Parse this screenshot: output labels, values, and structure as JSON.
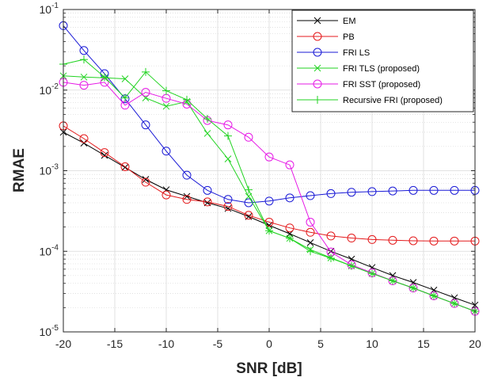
{
  "chart_data": {
    "type": "line",
    "xlabel": "SNR [dB]",
    "ylabel": "RMAE",
    "xlim": [
      -20,
      20
    ],
    "ylim": [
      1e-05,
      0.1
    ],
    "yscale": "log",
    "grid": true,
    "minor_grid": true,
    "legend_position": "top-right",
    "x_ticks": [
      -20,
      -15,
      -10,
      -5,
      0,
      5,
      10,
      15,
      20
    ],
    "y_ticks": [
      {
        "value": 1e-05,
        "base": "10",
        "exp": "-5"
      },
      {
        "value": 0.0001,
        "base": "10",
        "exp": "-4"
      },
      {
        "value": 0.001,
        "base": "10",
        "exp": "-3"
      },
      {
        "value": 0.01,
        "base": "10",
        "exp": "-2"
      },
      {
        "value": 0.1,
        "base": "10",
        "exp": "-1"
      }
    ],
    "x": [
      -20,
      -18,
      -16,
      -14,
      -12,
      -10,
      -8,
      -6,
      -4,
      -2,
      0,
      2,
      4,
      6,
      8,
      10,
      12,
      14,
      16,
      18,
      20
    ],
    "series": [
      {
        "name": "EM",
        "color": "#000000",
        "marker": "x",
        "values": [
          0.003,
          0.0022,
          0.00155,
          0.0011,
          0.00078,
          0.00058,
          0.00048,
          0.0004,
          0.00034,
          0.00027,
          0.00021,
          0.000165,
          0.000128,
          0.0001,
          8e-05,
          6.3e-05,
          5e-05,
          4.1e-05,
          3.3e-05,
          2.65e-05,
          2.15e-05
        ]
      },
      {
        "name": "PB",
        "color": "#e41a1c",
        "marker": "o",
        "values": [
          0.0036,
          0.0025,
          0.00168,
          0.00112,
          0.00072,
          0.0005,
          0.00044,
          0.00041,
          0.00036,
          0.00028,
          0.00023,
          0.000195,
          0.000172,
          0.000155,
          0.000146,
          0.00014,
          0.000137,
          0.000135,
          0.000134,
          0.000134,
          0.000134
        ]
      },
      {
        "name": "FRI LS",
        "color": "#1a1ad6",
        "marker": "o",
        "values": [
          0.063,
          0.031,
          0.016,
          0.0078,
          0.0037,
          0.00175,
          0.00088,
          0.00057,
          0.00044,
          0.0004,
          0.00042,
          0.00046,
          0.00049,
          0.00052,
          0.00054,
          0.00055,
          0.00056,
          0.00057,
          0.00057,
          0.00057,
          0.00057
        ]
      },
      {
        "name": "FRI TLS (proposed)",
        "color": "#22d322",
        "marker": "x",
        "values": [
          0.015,
          0.0145,
          0.0142,
          0.0138,
          0.008,
          0.0063,
          0.0072,
          0.0029,
          0.0014,
          0.00048,
          0.00018,
          0.000145,
          0.000105,
          8.3e-05,
          6.6e-05,
          5.3e-05,
          4.3e-05,
          3.5e-05,
          2.8e-05,
          2.25e-05,
          1.8e-05
        ]
      },
      {
        "name": "FRI SST (proposed)",
        "color": "#e61ae6",
        "marker": "o",
        "values": [
          0.0125,
          0.0115,
          0.0125,
          0.0065,
          0.0094,
          0.0079,
          0.0067,
          0.0042,
          0.0037,
          0.0026,
          0.00148,
          0.00118,
          0.00023,
          9.8e-05,
          6.8e-05,
          5.4e-05,
          4.3e-05,
          3.5e-05,
          2.8e-05,
          2.25e-05,
          1.8e-05
        ]
      },
      {
        "name": "Recursive FRI (proposed)",
        "color": "#22d322",
        "marker": "+",
        "values": [
          0.021,
          0.024,
          0.0145,
          0.008,
          0.0168,
          0.0098,
          0.0076,
          0.0044,
          0.0027,
          0.00058,
          0.00018,
          0.000145,
          0.0001,
          8.2e-05,
          6.6e-05,
          5.3e-05,
          4.3e-05,
          3.5e-05,
          2.8e-05,
          2.25e-05,
          1.8e-05
        ]
      }
    ]
  }
}
